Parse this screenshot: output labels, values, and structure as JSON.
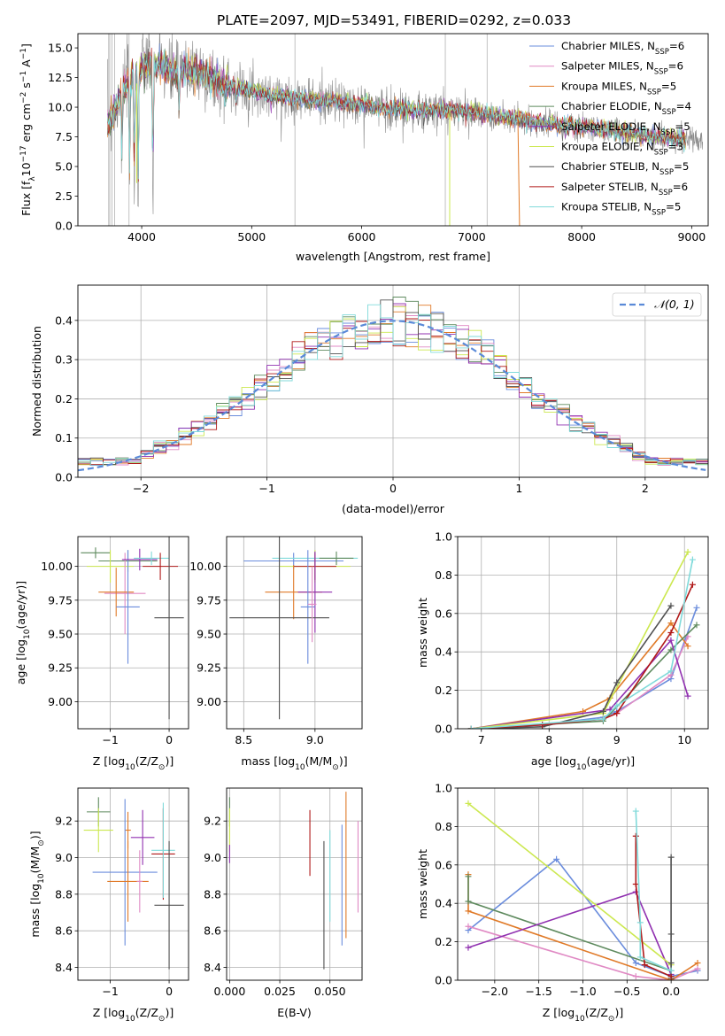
{
  "figure": {
    "title": "PLATE=2097, MJD=53491, FIBERID=0292, z=0.033"
  },
  "legend_labels": [
    "Chabrier MILES, N_SSP=6",
    "Salpeter MILES, N_SSP=6",
    "Kroupa MILES, N_SSP=5",
    "Chabrier ELODIE, N_SSP=4",
    "Salpeter ELODIE, N_SSP=5",
    "Kroupa ELODIE, N_SSP=3",
    "Chabrier STELIB, N_SSP=5",
    "Salpeter STELIB, N_SSP=6",
    "Kroupa STELIB, N_SSP=5"
  ],
  "model_colors": [
    "#6a8cdc",
    "#e08ac4",
    "#e07a28",
    "#5e8a5e",
    "#9030b0",
    "#cce850",
    "#505050",
    "#b01818",
    "#80dada"
  ],
  "chart_data": [
    {
      "id": "spectrum",
      "type": "line",
      "xlabel": "wavelength [Angstrom, rest frame]",
      "ylabel_main": "Flux [f",
      "ylabel_sub": "λ",
      "ylabel_rest": "10",
      "ylabel_exp": "−17",
      "ylabel_unit1": " erg cm",
      "ylabel_exp2": "−2",
      "ylabel_unit2": " s",
      "ylabel_exp3": "−1",
      "ylabel_unit3": " A",
      "ylabel_exp4": "−1",
      "ylabel_close": "]",
      "xlim": [
        3420,
        9150
      ],
      "ylim": [
        0,
        16.2
      ],
      "xticks": [
        "4000",
        "5000",
        "6000",
        "7000",
        "8000",
        "9000"
      ],
      "xtick_values": [
        4000,
        5000,
        6000,
        7000,
        8000,
        9000
      ],
      "yticks": [
        "0.0",
        "2.5",
        "5.0",
        "7.5",
        "10.0",
        "12.5",
        "15.0"
      ],
      "ytick_values": [
        0,
        2.5,
        5,
        7.5,
        10,
        12.5,
        15
      ],
      "continuum": [
        [
          3690,
          8.6
        ],
        [
          3750,
          9.6
        ],
        [
          3800,
          10.8
        ],
        [
          3850,
          11.8
        ],
        [
          3900,
          12.6
        ],
        [
          4000,
          13.3
        ],
        [
          4100,
          13.6
        ],
        [
          4200,
          13.4
        ],
        [
          4300,
          12.8
        ],
        [
          4400,
          13.1
        ],
        [
          4500,
          13.0
        ],
        [
          4600,
          12.6
        ],
        [
          4700,
          12.0
        ],
        [
          4800,
          11.8
        ],
        [
          4900,
          11.6
        ],
        [
          5000,
          11.4
        ],
        [
          5200,
          11.0
        ],
        [
          5400,
          10.8
        ],
        [
          5600,
          10.6
        ],
        [
          5800,
          10.4
        ],
        [
          6000,
          10.2
        ],
        [
          6200,
          9.9
        ],
        [
          6400,
          9.8
        ],
        [
          6600,
          9.7
        ],
        [
          6800,
          9.8
        ],
        [
          7000,
          9.6
        ],
        [
          7200,
          9.3
        ],
        [
          7400,
          9.0
        ],
        [
          7600,
          8.7
        ],
        [
          7800,
          8.5
        ],
        [
          8000,
          8.3
        ],
        [
          8200,
          8.1
        ],
        [
          8400,
          7.9
        ],
        [
          8600,
          7.6
        ],
        [
          8800,
          7.4
        ],
        [
          9000,
          7.2
        ],
        [
          9100,
          7.1
        ]
      ],
      "absorption": [
        [
          3820,
          4.8
        ],
        [
          3890,
          3.5
        ],
        [
          3933,
          2.8
        ],
        [
          3968,
          2.0
        ],
        [
          4102,
          1.5
        ],
        [
          4340,
          8.8
        ],
        [
          4861,
          10.2
        ],
        [
          5175,
          10.3
        ],
        [
          5890,
          9.6
        ],
        [
          6563,
          9.1
        ]
      ]
    },
    {
      "id": "residuals",
      "type": "step-histogram",
      "xlabel": "(data-model)/error",
      "ylabel": "Normed distribution",
      "xlim": [
        -2.5,
        2.5
      ],
      "ylim": [
        0,
        0.49
      ],
      "xticks": [
        "−2",
        "−1",
        "0",
        "1",
        "2"
      ],
      "xtick_values": [
        -2,
        -1,
        0,
        1,
        2
      ],
      "yticks": [
        "0.0",
        "0.1",
        "0.2",
        "0.3",
        "0.4"
      ],
      "ytick_values": [
        0,
        0.1,
        0.2,
        0.3,
        0.4
      ],
      "legend": "𝒩(0, 1)",
      "bin_width": 0.1
    },
    {
      "id": "age_vs_Z",
      "type": "errorbar",
      "xlabel_main": "Z [log",
      "xlabel_sub": "10",
      "xlabel_rest": "(Z/Z",
      "xlabel_sub2": "⊙",
      "xlabel_close": ")]",
      "ylabel_main": "age  [log",
      "ylabel_sub": "10",
      "ylabel_rest": "(age/yr)]",
      "xlim": [
        -1.55,
        0.33
      ],
      "ylim": [
        8.8,
        10.22
      ],
      "xticks": [
        "−1",
        "0"
      ],
      "xtick_values": [
        -1,
        0
      ],
      "yticks": [
        "9.00",
        "9.25",
        "9.50",
        "9.75",
        "10.00"
      ],
      "ytick_values": [
        9,
        9.25,
        9.5,
        9.75,
        10
      ],
      "points": [
        {
          "x": -0.7,
          "xerr": 0.5,
          "y": 10.04,
          "yerr": 0.08,
          "c": 3
        },
        {
          "x": -1.25,
          "xerr": 0.25,
          "y": 10.1,
          "yerr": 0.04,
          "c": 3
        },
        {
          "x": -1.0,
          "xerr": 0.4,
          "y": 10.0,
          "yerr": 0.12,
          "c": 5
        },
        {
          "x": -0.75,
          "xerr": 0.35,
          "y": 9.8,
          "yerr": 0.3,
          "c": 1
        },
        {
          "x": -0.9,
          "xerr": 0.3,
          "y": 9.81,
          "yerr": 0.18,
          "c": 2
        },
        {
          "x": -0.7,
          "xerr": 0.2,
          "y": 9.7,
          "yerr": 0.42,
          "c": 0
        },
        {
          "x": -0.5,
          "xerr": 0.3,
          "y": 10.05,
          "yerr": 0.08,
          "c": 4
        },
        {
          "x": -0.3,
          "xerr": 0.3,
          "y": 10.06,
          "yerr": 0.05,
          "c": 8
        },
        {
          "x": -0.15,
          "xerr": 0.3,
          "y": 10.0,
          "yerr": 0.1,
          "c": 7
        },
        {
          "x": 0.0,
          "xerr": 0.25,
          "y": 9.62,
          "yerr": 0.75,
          "c": 6
        }
      ]
    },
    {
      "id": "age_vs_mass",
      "type": "errorbar",
      "xlabel_main": "mass [log",
      "xlabel_sub": "10",
      "xlabel_rest": "(M/M",
      "xlabel_sub2": "⊙",
      "xlabel_close": ")]",
      "xlim": [
        8.38,
        9.33
      ],
      "ylim": [
        8.8,
        10.22
      ],
      "xticks": [
        "8.5",
        "9.0"
      ],
      "xtick_values": [
        8.5,
        9.0
      ],
      "yticks": [
        "9.00",
        "9.25",
        "9.50",
        "9.75",
        "10.00"
      ],
      "ytick_values": [
        9,
        9.25,
        9.5,
        9.75,
        10
      ],
      "points": [
        {
          "x": 8.85,
          "xerr": 0.35,
          "y": 10.04,
          "yerr": 0.06,
          "c": 0
        },
        {
          "x": 9.0,
          "xerr": 0.3,
          "y": 10.06,
          "yerr": 0.05,
          "c": 8
        },
        {
          "x": 9.15,
          "xerr": 0.12,
          "y": 10.06,
          "yerr": 0.05,
          "c": 3
        },
        {
          "x": 9.0,
          "xerr": 0.25,
          "y": 10.0,
          "yerr": 0.12,
          "c": 5
        },
        {
          "x": 9.0,
          "xerr": 0.15,
          "y": 10.0,
          "yerr": 0.1,
          "c": 7
        },
        {
          "x": 8.85,
          "xerr": 0.2,
          "y": 9.81,
          "yerr": 0.2,
          "c": 2
        },
        {
          "x": 9.0,
          "xerr": 0.12,
          "y": 9.81,
          "yerr": 0.3,
          "c": 4
        },
        {
          "x": 8.95,
          "xerr": 0.05,
          "y": 9.7,
          "yerr": 0.42,
          "c": 0
        },
        {
          "x": 8.75,
          "xerr": 0.35,
          "y": 9.62,
          "yerr": 0.75,
          "c": 6
        },
        {
          "x": 8.98,
          "xerr": 0.03,
          "y": 9.72,
          "yerr": 0.28,
          "c": 1
        }
      ]
    },
    {
      "id": "weight_vs_age",
      "type": "line",
      "xlabel_main": "age  [log",
      "xlabel_sub": "10",
      "xlabel_rest": "(age/yr)]",
      "ylabel": "mass weight",
      "xlim": [
        6.65,
        10.35
      ],
      "ylim": [
        0,
        1.0
      ],
      "xticks": [
        "7",
        "8",
        "9",
        "10"
      ],
      "xtick_values": [
        7,
        8,
        9,
        10
      ],
      "yticks": [
        "0.0",
        "0.2",
        "0.4",
        "0.6",
        "0.8",
        "1.0"
      ],
      "ytick_values": [
        0,
        0.2,
        0.4,
        0.6,
        0.8,
        1.0
      ],
      "series": [
        {
          "c": 0,
          "x": [
            6.85,
            7.9,
            8.8,
            9.0,
            9.8,
            10.18
          ],
          "y": [
            0.0,
            0.02,
            0.06,
            0.09,
            0.26,
            0.63
          ]
        },
        {
          "c": 1,
          "x": [
            6.85,
            7.9,
            8.8,
            9.0,
            9.8,
            10.05
          ],
          "y": [
            0.0,
            0.02,
            0.05,
            0.08,
            0.28,
            0.48
          ]
        },
        {
          "c": 2,
          "x": [
            6.85,
            8.5,
            8.9,
            9.8,
            10.05
          ],
          "y": [
            0.0,
            0.09,
            0.16,
            0.55,
            0.43
          ]
        },
        {
          "c": 3,
          "x": [
            6.85,
            8.8,
            9.8,
            10.18
          ],
          "y": [
            0.0,
            0.04,
            0.41,
            0.54
          ]
        },
        {
          "c": 4,
          "x": [
            6.85,
            8.9,
            9.8,
            10.05
          ],
          "y": [
            0.0,
            0.1,
            0.46,
            0.17
          ]
        },
        {
          "c": 5,
          "x": [
            6.85,
            8.8,
            10.05
          ],
          "y": [
            0.0,
            0.08,
            0.92
          ]
        },
        {
          "c": 6,
          "x": [
            6.85,
            7.9,
            8.8,
            9.0,
            9.8
          ],
          "y": [
            0.0,
            0.01,
            0.09,
            0.24,
            0.64
          ]
        },
        {
          "c": 7,
          "x": [
            6.85,
            7.9,
            8.8,
            9.0,
            9.8,
            10.12
          ],
          "y": [
            0.0,
            0.02,
            0.05,
            0.08,
            0.5,
            0.75
          ]
        },
        {
          "c": 8,
          "x": [
            6.85,
            8.8,
            9.0,
            9.8,
            10.12
          ],
          "y": [
            0.0,
            0.05,
            0.12,
            0.3,
            0.88
          ]
        }
      ]
    },
    {
      "id": "mass_vs_Z",
      "type": "errorbar",
      "xlabel_main": "Z [log",
      "xlabel_sub": "10",
      "xlabel_rest": "(Z/Z",
      "xlabel_sub2": "⊙",
      "xlabel_close": ")]",
      "ylabel_main": "mass [log",
      "ylabel_sub": "10",
      "ylabel_rest": "(M/M",
      "ylabel_sub2": "⊙",
      "ylabel_close": ")]",
      "xlim": [
        -1.55,
        0.33
      ],
      "ylim": [
        8.33,
        9.38
      ],
      "xticks": [
        "−1",
        "0"
      ],
      "xtick_values": [
        -1,
        0
      ],
      "yticks": [
        "8.4",
        "8.6",
        "8.8",
        "9.0",
        "9.2"
      ],
      "ytick_values": [
        8.4,
        8.6,
        8.8,
        9.0,
        9.2
      ],
      "points": [
        {
          "x": -1.2,
          "xerr": 0.2,
          "y": 9.25,
          "yerr": 0.08,
          "c": 3
        },
        {
          "x": -1.2,
          "xerr": 0.25,
          "y": 9.15,
          "yerr": 0.12,
          "c": 5
        },
        {
          "x": -0.7,
          "xerr": 0.05,
          "y": 9.15,
          "yerr": 0.1,
          "c": 2
        },
        {
          "x": -0.45,
          "xerr": 0.2,
          "y": 9.11,
          "yerr": 0.15,
          "c": 4
        },
        {
          "x": -0.1,
          "xerr": 0.2,
          "y": 9.02,
          "yerr": 0.25,
          "c": 7
        },
        {
          "x": -0.1,
          "xerr": 0.2,
          "y": 9.04,
          "yerr": 0.26,
          "c": 8
        },
        {
          "x": -0.75,
          "xerr": 0.55,
          "y": 8.92,
          "yerr": 0.4,
          "c": 0
        },
        {
          "x": -0.7,
          "xerr": 0.35,
          "y": 8.87,
          "yerr": 0.22,
          "c": 2
        },
        {
          "x": -0.5,
          "xerr": 0.05,
          "y": 8.87,
          "yerr": 0.17,
          "c": 1
        },
        {
          "x": 0.0,
          "xerr": 0.25,
          "y": 8.74,
          "yerr": 0.35,
          "c": 6
        }
      ]
    },
    {
      "id": "mass_vs_ebv",
      "type": "errorbar",
      "xlabel": "E(B-V)",
      "xlim": [
        -0.0015,
        0.066
      ],
      "ylim": [
        8.33,
        9.38
      ],
      "xticks": [
        "0.000",
        "0.025",
        "0.050"
      ],
      "xtick_values": [
        0,
        0.025,
        0.05
      ],
      "yticks": [
        "8.4",
        "8.6",
        "8.8",
        "9.0",
        "9.2"
      ],
      "ytick_values": [
        8.4,
        8.6,
        8.8,
        9.0,
        9.2
      ],
      "points": [
        {
          "x": 0.0,
          "xerr": 0,
          "y": 9.25,
          "yerr": 0.08,
          "c": 3
        },
        {
          "x": 0.0,
          "xerr": 0,
          "y": 9.15,
          "yerr": 0.12,
          "c": 5
        },
        {
          "x": 0.0,
          "xerr": 0,
          "y": 9.02,
          "yerr": 0.05,
          "c": 4
        },
        {
          "x": 0.04,
          "xerr": 0,
          "y": 9.08,
          "yerr": 0.18,
          "c": 7
        },
        {
          "x": 0.047,
          "xerr": 0,
          "y": 8.74,
          "yerr": 0.35,
          "c": 6
        },
        {
          "x": 0.05,
          "xerr": 0,
          "y": 8.9,
          "yerr": 0.25,
          "c": 8
        },
        {
          "x": 0.056,
          "xerr": 0,
          "y": 8.85,
          "yerr": 0.33,
          "c": 0
        },
        {
          "x": 0.058,
          "xerr": 0,
          "y": 8.96,
          "yerr": 0.4,
          "c": 2
        },
        {
          "x": 0.064,
          "xerr": 0,
          "y": 8.95,
          "yerr": 0.25,
          "c": 1
        }
      ]
    },
    {
      "id": "weight_vs_Z",
      "type": "line",
      "xlabel_main": "Z [log",
      "xlabel_sub": "10",
      "xlabel_rest": "(Z/Z",
      "xlabel_sub2": "⊙",
      "xlabel_close": ")]",
      "ylabel": "mass weight",
      "xlim": [
        -2.42,
        0.42
      ],
      "ylim": [
        0,
        1.0
      ],
      "xticks": [
        "−2.0",
        "−1.5",
        "−1.0",
        "−0.5",
        "0.0"
      ],
      "xtick_values": [
        -2,
        -1.5,
        -1,
        -0.5,
        0
      ],
      "yticks": [
        "0.0",
        "0.2",
        "0.4",
        "0.6",
        "0.8",
        "1.0"
      ],
      "ytick_values": [
        0,
        0.2,
        0.4,
        0.6,
        0.8,
        1.0
      ],
      "series": [
        {
          "c": 0,
          "x": [
            -2.3,
            -1.3,
            -0.4,
            0.0,
            0.3
          ],
          "y": [
            0.26,
            0.63,
            0.09,
            0.02,
            0.05
          ]
        },
        {
          "c": 1,
          "x": [
            -2.3,
            -0.4,
            0.0,
            0.3
          ],
          "y": [
            0.28,
            0.02,
            0.0,
            0.06
          ]
        },
        {
          "c": 2,
          "x": [
            -2.3,
            -2.3,
            0.0,
            0.3
          ],
          "y": [
            0.55,
            0.36,
            0.0,
            0.09
          ]
        },
        {
          "c": 3,
          "x": [
            -2.3,
            -2.3,
            0.0
          ],
          "y": [
            0.54,
            0.41,
            0.05
          ]
        },
        {
          "c": 4,
          "x": [
            -2.3,
            -0.4,
            0.0
          ],
          "y": [
            0.17,
            0.46,
            0.03
          ]
        },
        {
          "c": 5,
          "x": [
            -2.3,
            0.0
          ],
          "y": [
            0.92,
            0.08
          ]
        },
        {
          "c": 6,
          "x": [
            0.0,
            0.0,
            0.0,
            0.0
          ],
          "y": [
            0.64,
            0.24,
            0.09,
            0.01
          ]
        },
        {
          "c": 7,
          "x": [
            -0.4,
            -0.4,
            -0.3,
            0.0
          ],
          "y": [
            0.75,
            0.5,
            0.08,
            0.02
          ]
        },
        {
          "c": 8,
          "x": [
            -0.4,
            -0.35,
            -0.35,
            0.0
          ],
          "y": [
            0.88,
            0.3,
            0.12,
            0.05
          ]
        }
      ]
    }
  ]
}
